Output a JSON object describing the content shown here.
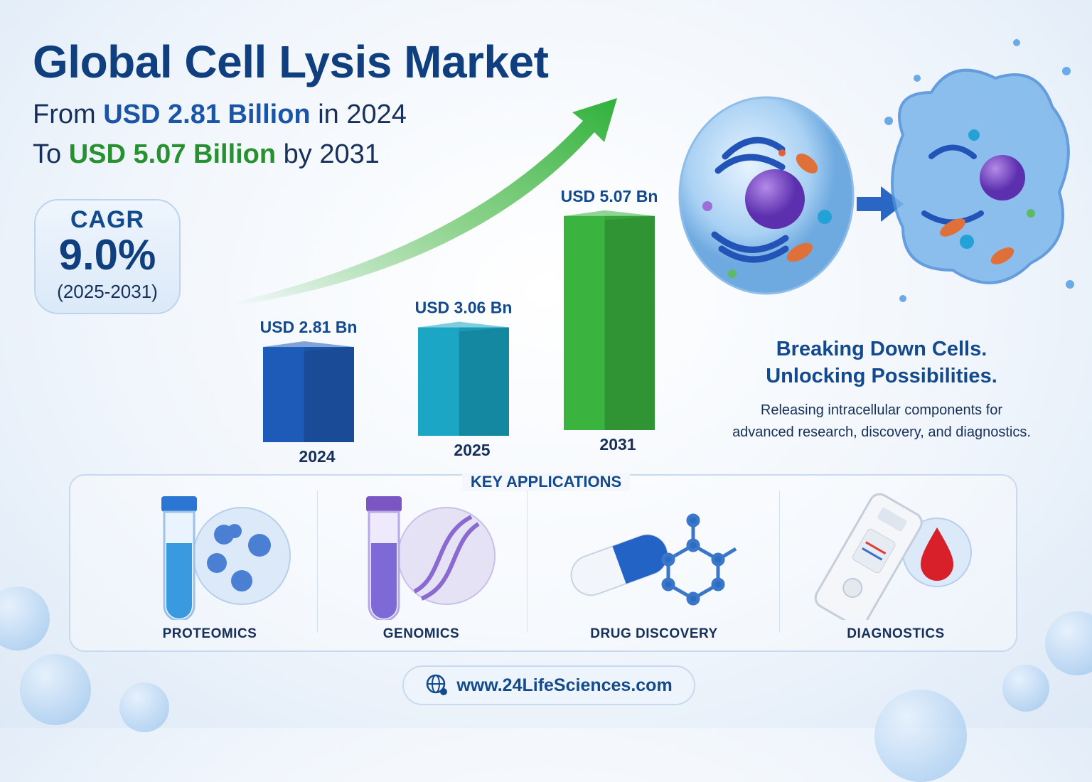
{
  "title": "Global Cell Lysis Market",
  "subtitle": {
    "l1_a": "From",
    "l1_b": "USD 2.81 Billion",
    "l1_c": "in 2024",
    "l2_a": "To",
    "l2_b": "USD 5.07 Billion",
    "l2_c": "by 2031"
  },
  "cagr": {
    "label": "CAGR",
    "value": "9.0%",
    "period": "(2025-2031)"
  },
  "tagline": {
    "line1": "Breaking Down Cells.",
    "line2": "Unlocking Possibilities.",
    "desc1": "Releasing intracellular components for",
    "desc2": "advanced research, discovery, and diagnostics."
  },
  "applications": {
    "title": "KEY APPLICATIONS",
    "items": [
      {
        "label": "PROTEOMICS",
        "icon": "test-tube-protein-icon"
      },
      {
        "label": "GENOMICS",
        "icon": "test-tube-dna-icon"
      },
      {
        "label": "DRUG DISCOVERY",
        "icon": "capsule-molecule-icon"
      },
      {
        "label": "DIAGNOSTICS",
        "icon": "test-strip-blood-drop-icon"
      }
    ]
  },
  "url": "www.24LifeSciences.com",
  "colors": {
    "navy": "#0f3f7e",
    "blue": "#1e5bb8",
    "teal": "#1aa6c4",
    "green": "#3bb33f"
  },
  "chart_data": {
    "type": "bar",
    "categories": [
      "2024",
      "2025",
      "2031"
    ],
    "values": [
      2.81,
      3.06,
      5.07
    ],
    "value_labels": [
      "USD 2.81 Bn",
      "USD 3.06 Bn",
      "USD 5.07 Bn"
    ],
    "unit": "USD Billion",
    "bar_colors": [
      "#1e5bb8",
      "#1aa6c4",
      "#3bb33f"
    ],
    "trend_arrow": "up",
    "grid": false
  }
}
